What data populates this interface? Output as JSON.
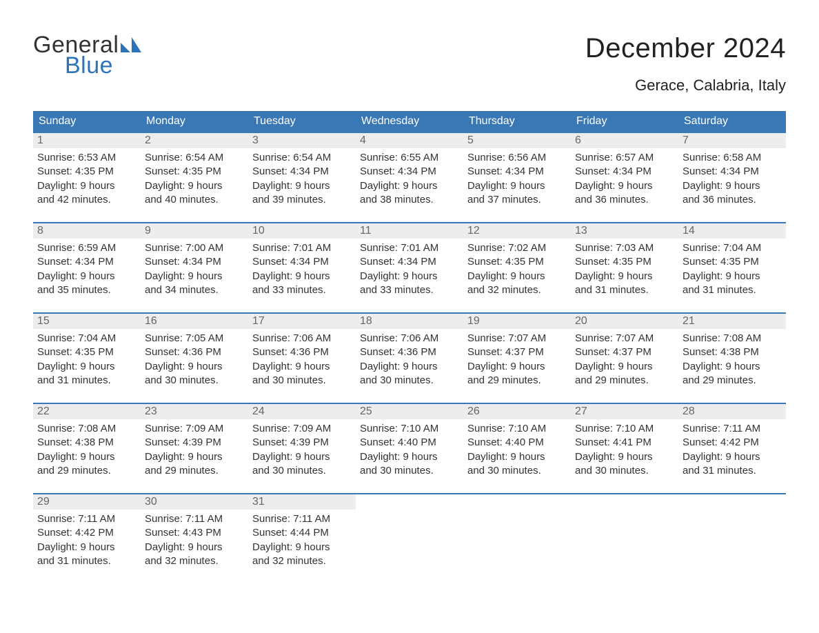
{
  "logo": {
    "text1": "General",
    "text2": "Blue",
    "tri_color": "#2d73b8"
  },
  "title": {
    "month": "December 2024",
    "location": "Gerace, Calabria, Italy"
  },
  "colors": {
    "header_bg": "#3a78b5",
    "header_text": "#ffffff",
    "daynum_bg": "#ededed",
    "daynum_text": "#666666",
    "row_border": "#3a78b5",
    "body_text": "#333333",
    "page_bg": "#ffffff"
  },
  "fonts": {
    "title_size_pt": 30,
    "location_size_pt": 17,
    "header_size_pt": 12,
    "body_size_pt": 11
  },
  "day_headers": [
    "Sunday",
    "Monday",
    "Tuesday",
    "Wednesday",
    "Thursday",
    "Friday",
    "Saturday"
  ],
  "weeks": [
    [
      {
        "num": "1",
        "sunrise": "Sunrise: 6:53 AM",
        "sunset": "Sunset: 4:35 PM",
        "day1": "Daylight: 9 hours",
        "day2": "and 42 minutes."
      },
      {
        "num": "2",
        "sunrise": "Sunrise: 6:54 AM",
        "sunset": "Sunset: 4:35 PM",
        "day1": "Daylight: 9 hours",
        "day2": "and 40 minutes."
      },
      {
        "num": "3",
        "sunrise": "Sunrise: 6:54 AM",
        "sunset": "Sunset: 4:34 PM",
        "day1": "Daylight: 9 hours",
        "day2": "and 39 minutes."
      },
      {
        "num": "4",
        "sunrise": "Sunrise: 6:55 AM",
        "sunset": "Sunset: 4:34 PM",
        "day1": "Daylight: 9 hours",
        "day2": "and 38 minutes."
      },
      {
        "num": "5",
        "sunrise": "Sunrise: 6:56 AM",
        "sunset": "Sunset: 4:34 PM",
        "day1": "Daylight: 9 hours",
        "day2": "and 37 minutes."
      },
      {
        "num": "6",
        "sunrise": "Sunrise: 6:57 AM",
        "sunset": "Sunset: 4:34 PM",
        "day1": "Daylight: 9 hours",
        "day2": "and 36 minutes."
      },
      {
        "num": "7",
        "sunrise": "Sunrise: 6:58 AM",
        "sunset": "Sunset: 4:34 PM",
        "day1": "Daylight: 9 hours",
        "day2": "and 36 minutes."
      }
    ],
    [
      {
        "num": "8",
        "sunrise": "Sunrise: 6:59 AM",
        "sunset": "Sunset: 4:34 PM",
        "day1": "Daylight: 9 hours",
        "day2": "and 35 minutes."
      },
      {
        "num": "9",
        "sunrise": "Sunrise: 7:00 AM",
        "sunset": "Sunset: 4:34 PM",
        "day1": "Daylight: 9 hours",
        "day2": "and 34 minutes."
      },
      {
        "num": "10",
        "sunrise": "Sunrise: 7:01 AM",
        "sunset": "Sunset: 4:34 PM",
        "day1": "Daylight: 9 hours",
        "day2": "and 33 minutes."
      },
      {
        "num": "11",
        "sunrise": "Sunrise: 7:01 AM",
        "sunset": "Sunset: 4:34 PM",
        "day1": "Daylight: 9 hours",
        "day2": "and 33 minutes."
      },
      {
        "num": "12",
        "sunrise": "Sunrise: 7:02 AM",
        "sunset": "Sunset: 4:35 PM",
        "day1": "Daylight: 9 hours",
        "day2": "and 32 minutes."
      },
      {
        "num": "13",
        "sunrise": "Sunrise: 7:03 AM",
        "sunset": "Sunset: 4:35 PM",
        "day1": "Daylight: 9 hours",
        "day2": "and 31 minutes."
      },
      {
        "num": "14",
        "sunrise": "Sunrise: 7:04 AM",
        "sunset": "Sunset: 4:35 PM",
        "day1": "Daylight: 9 hours",
        "day2": "and 31 minutes."
      }
    ],
    [
      {
        "num": "15",
        "sunrise": "Sunrise: 7:04 AM",
        "sunset": "Sunset: 4:35 PM",
        "day1": "Daylight: 9 hours",
        "day2": "and 31 minutes."
      },
      {
        "num": "16",
        "sunrise": "Sunrise: 7:05 AM",
        "sunset": "Sunset: 4:36 PM",
        "day1": "Daylight: 9 hours",
        "day2": "and 30 minutes."
      },
      {
        "num": "17",
        "sunrise": "Sunrise: 7:06 AM",
        "sunset": "Sunset: 4:36 PM",
        "day1": "Daylight: 9 hours",
        "day2": "and 30 minutes."
      },
      {
        "num": "18",
        "sunrise": "Sunrise: 7:06 AM",
        "sunset": "Sunset: 4:36 PM",
        "day1": "Daylight: 9 hours",
        "day2": "and 30 minutes."
      },
      {
        "num": "19",
        "sunrise": "Sunrise: 7:07 AM",
        "sunset": "Sunset: 4:37 PM",
        "day1": "Daylight: 9 hours",
        "day2": "and 29 minutes."
      },
      {
        "num": "20",
        "sunrise": "Sunrise: 7:07 AM",
        "sunset": "Sunset: 4:37 PM",
        "day1": "Daylight: 9 hours",
        "day2": "and 29 minutes."
      },
      {
        "num": "21",
        "sunrise": "Sunrise: 7:08 AM",
        "sunset": "Sunset: 4:38 PM",
        "day1": "Daylight: 9 hours",
        "day2": "and 29 minutes."
      }
    ],
    [
      {
        "num": "22",
        "sunrise": "Sunrise: 7:08 AM",
        "sunset": "Sunset: 4:38 PM",
        "day1": "Daylight: 9 hours",
        "day2": "and 29 minutes."
      },
      {
        "num": "23",
        "sunrise": "Sunrise: 7:09 AM",
        "sunset": "Sunset: 4:39 PM",
        "day1": "Daylight: 9 hours",
        "day2": "and 29 minutes."
      },
      {
        "num": "24",
        "sunrise": "Sunrise: 7:09 AM",
        "sunset": "Sunset: 4:39 PM",
        "day1": "Daylight: 9 hours",
        "day2": "and 30 minutes."
      },
      {
        "num": "25",
        "sunrise": "Sunrise: 7:10 AM",
        "sunset": "Sunset: 4:40 PM",
        "day1": "Daylight: 9 hours",
        "day2": "and 30 minutes."
      },
      {
        "num": "26",
        "sunrise": "Sunrise: 7:10 AM",
        "sunset": "Sunset: 4:40 PM",
        "day1": "Daylight: 9 hours",
        "day2": "and 30 minutes."
      },
      {
        "num": "27",
        "sunrise": "Sunrise: 7:10 AM",
        "sunset": "Sunset: 4:41 PM",
        "day1": "Daylight: 9 hours",
        "day2": "and 30 minutes."
      },
      {
        "num": "28",
        "sunrise": "Sunrise: 7:11 AM",
        "sunset": "Sunset: 4:42 PM",
        "day1": "Daylight: 9 hours",
        "day2": "and 31 minutes."
      }
    ],
    [
      {
        "num": "29",
        "sunrise": "Sunrise: 7:11 AM",
        "sunset": "Sunset: 4:42 PM",
        "day1": "Daylight: 9 hours",
        "day2": "and 31 minutes."
      },
      {
        "num": "30",
        "sunrise": "Sunrise: 7:11 AM",
        "sunset": "Sunset: 4:43 PM",
        "day1": "Daylight: 9 hours",
        "day2": "and 32 minutes."
      },
      {
        "num": "31",
        "sunrise": "Sunrise: 7:11 AM",
        "sunset": "Sunset: 4:44 PM",
        "day1": "Daylight: 9 hours",
        "day2": "and 32 minutes."
      },
      {
        "empty": true
      },
      {
        "empty": true
      },
      {
        "empty": true
      },
      {
        "empty": true
      }
    ]
  ]
}
